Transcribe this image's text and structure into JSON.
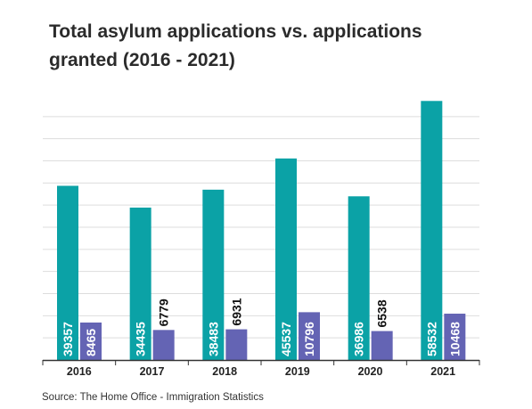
{
  "header": {
    "title_line1": "Total asylum applications vs. applications",
    "title_line2": "granted (2016 - 2021)"
  },
  "footer": {
    "source": "Source: The Home Office - Immigration Statistics"
  },
  "colors": {
    "applications": "#0ba2a6",
    "granted": "#6464b4",
    "grid": "#dddddd",
    "axis": "#333333"
  },
  "chart_data": {
    "type": "bar",
    "title": "Total asylum applications vs. applications granted (2016 - 2021)",
    "categories": [
      "2016",
      "2017",
      "2018",
      "2019",
      "2020",
      "2021"
    ],
    "series": [
      {
        "values": [
          39357,
          34435,
          38483,
          45537,
          36986,
          58532
        ]
      },
      {
        "values": [
          8465,
          6779,
          6931,
          10796,
          6538,
          10468
        ]
      }
    ],
    "ylim": [
      0,
      60000
    ],
    "grid": true,
    "legend": "none"
  }
}
